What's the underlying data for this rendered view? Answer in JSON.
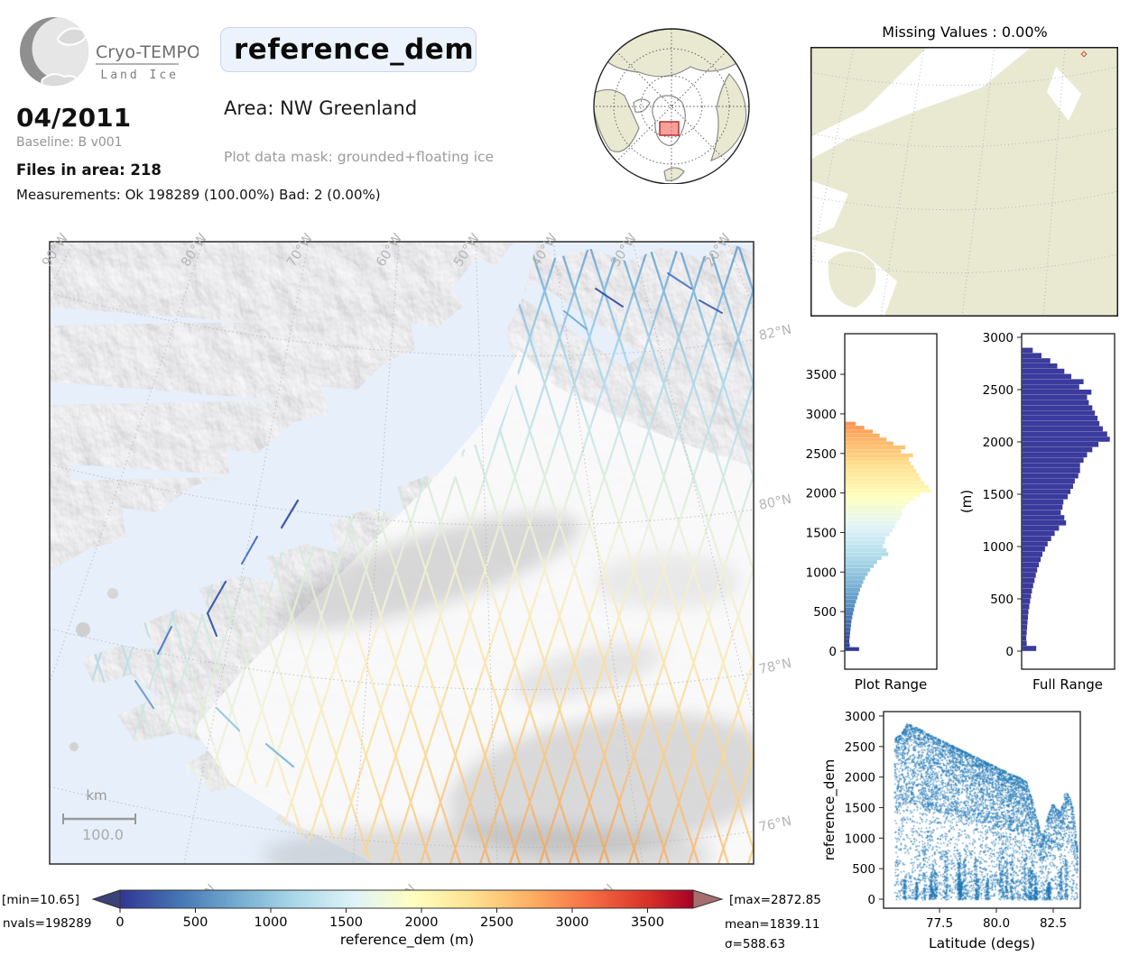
{
  "header": {
    "logo": {
      "title": "Cryo-TEMPO",
      "subtitle": "Land Ice"
    },
    "variable": "reference_dem",
    "area_label": "Area: NW Greenland",
    "plot_mask": "Plot data mask: grounded+floating ice",
    "date": "04/2011",
    "baseline": "Baseline: B v001",
    "files": "Files in area: 218",
    "measurements": "Measurements: Ok 198289 (100.00%) Bad: 2 (0.00%)"
  },
  "missing_values": {
    "title": "Missing Values : 0.00%"
  },
  "map": {
    "lon_labels": [
      "90°W",
      "80°W",
      "70°W",
      "60°W",
      "50°W",
      "40°W",
      "30°W",
      "20°W"
    ],
    "lat_labels": [
      "82°N",
      "80°N",
      "78°N",
      "76°N"
    ],
    "bottom_labels": [
      "0°W",
      "°W",
      "°W"
    ],
    "scalebar": {
      "unit": "km",
      "value": "100.0"
    }
  },
  "histograms": {
    "plot_range": {
      "title": "Plot Range"
    },
    "full_range": {
      "title": "Full Range",
      "ylabel": "(m)"
    }
  },
  "scatter": {
    "xlabel": "Latitude (degs)",
    "ylabel": "reference_dem"
  },
  "colorbar": {
    "label": "reference_dem (m)",
    "min_label": "[min=10.65]",
    "max_label": "[max=2872.85]",
    "nvals_label": "nvals=198289",
    "mean_label": "mean=1839.11",
    "sigma_label": "σ=588.63"
  },
  "chart_data": [
    {
      "id": "plot_range_hist",
      "type": "bar",
      "orientation": "horizontal",
      "title": "Plot Range",
      "ylim": [
        0,
        4000
      ],
      "yticks": [
        0,
        500,
        1000,
        1500,
        2000,
        2500,
        3000,
        3500
      ],
      "bin_width_m": 50,
      "bin_centers_m": [
        25,
        75,
        125,
        175,
        225,
        275,
        325,
        375,
        425,
        475,
        525,
        575,
        625,
        675,
        725,
        775,
        825,
        875,
        925,
        975,
        1025,
        1075,
        1125,
        1175,
        1225,
        1275,
        1325,
        1375,
        1425,
        1475,
        1525,
        1575,
        1625,
        1675,
        1725,
        1775,
        1825,
        1875,
        1925,
        1975,
        2025,
        2075,
        2125,
        2175,
        2225,
        2275,
        2325,
        2375,
        2425,
        2475,
        2525,
        2575,
        2625,
        2675,
        2725,
        2775,
        2825,
        2875
      ],
      "rel_freq": [
        0.16,
        0.05,
        0.045,
        0.05,
        0.055,
        0.06,
        0.065,
        0.07,
        0.08,
        0.09,
        0.1,
        0.11,
        0.125,
        0.14,
        0.155,
        0.17,
        0.19,
        0.21,
        0.23,
        0.26,
        0.29,
        0.33,
        0.37,
        0.42,
        0.5,
        0.48,
        0.44,
        0.46,
        0.47,
        0.52,
        0.55,
        0.58,
        0.6,
        0.64,
        0.66,
        0.66,
        0.7,
        0.74,
        0.8,
        0.87,
        1.0,
        0.97,
        0.92,
        0.88,
        0.86,
        0.83,
        0.8,
        0.76,
        0.74,
        0.79,
        0.65,
        0.7,
        0.56,
        0.48,
        0.4,
        0.32,
        0.22,
        0.12
      ],
      "colormap": "RdYlBu_r",
      "colormap_value_range": [
        0,
        3900
      ]
    },
    {
      "id": "full_range_hist",
      "type": "bar",
      "orientation": "horizontal",
      "title": "Full Range",
      "ylabel": "(m)",
      "ylim": [
        0,
        3050
      ],
      "yticks": [
        0,
        500,
        1000,
        1500,
        2000,
        2500,
        3000
      ],
      "bins_same_as": "plot_range_hist",
      "color": "#3b3b9d"
    },
    {
      "id": "latitude_scatter",
      "type": "scatter",
      "xlabel": "Latitude (degs)",
      "ylabel": "reference_dem",
      "xlim": [
        75.3,
        83.95
      ],
      "ylim": [
        -60,
        3080
      ],
      "xticks": [
        77.5,
        80.0,
        82.5
      ],
      "yticks": [
        0,
        500,
        1000,
        1500,
        2000,
        2500,
        3000
      ],
      "color": "#1f77b4",
      "n_points_total": 198289,
      "upper_envelope_lat_m": [
        [
          75.5,
          2640
        ],
        [
          75.8,
          2720
        ],
        [
          76.05,
          2880
        ],
        [
          76.5,
          2820
        ],
        [
          77.0,
          2710
        ],
        [
          77.5,
          2620
        ],
        [
          78.0,
          2530
        ],
        [
          78.5,
          2440
        ],
        [
          79.0,
          2350
        ],
        [
          79.5,
          2260
        ],
        [
          80.0,
          2170
        ],
        [
          80.5,
          2080
        ],
        [
          81.0,
          2000
        ],
        [
          81.3,
          1930
        ],
        [
          81.6,
          1580
        ],
        [
          81.9,
          1130
        ],
        [
          82.05,
          1060
        ],
        [
          82.2,
          1320
        ],
        [
          82.45,
          1590
        ],
        [
          82.6,
          1500
        ],
        [
          82.8,
          1430
        ],
        [
          83.0,
          1770
        ],
        [
          83.2,
          1690
        ],
        [
          83.35,
          1480
        ],
        [
          83.55,
          850
        ]
      ],
      "render": {
        "n_points_drawn": 7000,
        "seed": 42
      }
    },
    {
      "id": "colorbar",
      "type": "colorbar",
      "label": "reference_dem (m)",
      "ticks": [
        0,
        500,
        1000,
        1500,
        2000,
        2500,
        3000,
        3500
      ],
      "value_range": [
        0,
        3800
      ],
      "cmap": "RdYlBu_r",
      "cmap_stops": [
        [
          0,
          "#313695"
        ],
        [
          0.1,
          "#4575b4"
        ],
        [
          0.2,
          "#74add1"
        ],
        [
          0.3,
          "#abd9e9"
        ],
        [
          0.4,
          "#e0f3f8"
        ],
        [
          0.5,
          "#ffffbf"
        ],
        [
          0.6,
          "#fee090"
        ],
        [
          0.7,
          "#fdae61"
        ],
        [
          0.8,
          "#f46d43"
        ],
        [
          0.9,
          "#d73027"
        ],
        [
          1,
          "#a50026"
        ]
      ],
      "under_color": "#3c4178",
      "over_color": "#a76e6e",
      "min": 10.65,
      "max": 2872.85,
      "mean": 1839.11,
      "sigma": 588.63,
      "nvals": 198289
    }
  ]
}
